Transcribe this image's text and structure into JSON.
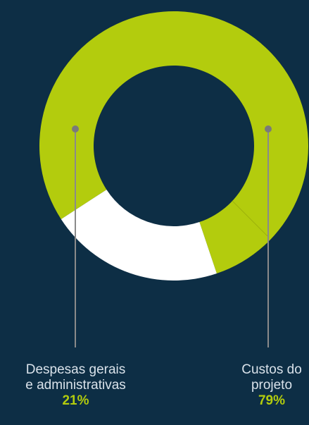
{
  "colors": {
    "background": "#0d2e45",
    "slice_green": "#b3cc0d",
    "slice_white": "#ffffff",
    "leader": "#8a8a8a",
    "label_text": "#d9e2ea",
    "percent_text": "#b3cc0d"
  },
  "chart_data": {
    "type": "pie",
    "donut": true,
    "slices": [
      {
        "label": "Custos do projeto",
        "value": 79,
        "color": "#b3cc0d"
      },
      {
        "label": "Despesas gerais e administrativas",
        "value": 21,
        "color": "#ffffff"
      }
    ],
    "title": "",
    "legend": "none"
  },
  "labels": {
    "admin": {
      "line1": "Despesas gerais",
      "line2": "e administrativas",
      "percent": "21%"
    },
    "custos": {
      "line1": "Custos do",
      "line2": "projeto",
      "percent": "79%"
    }
  }
}
